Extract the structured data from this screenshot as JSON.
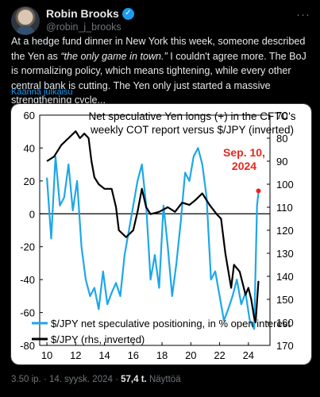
{
  "header": {
    "name": "Robin Brooks",
    "handle": "@robin_j_brooks",
    "verified_icon": "check-badge-icon",
    "more_icon": "ellipsis-icon",
    "verified_color": "#1d9bf0"
  },
  "tweet": {
    "text_before": "At a hedge fund dinner in New York this week, someone described the Yen as ",
    "quote": "“the only game in town.”",
    "text_after": " I couldn't agree more. The BoJ is normalizing policy, which means tightening, while every other central bank is cutting. The Yen only just started a massive strengthening cycle...",
    "translate": "Käännä julkaisu"
  },
  "footer": {
    "time": "3.50 ip.",
    "dot": "·",
    "date": "14. syysk. 2024",
    "views_count": "57,4 t.",
    "views_label": "Näyttöä"
  },
  "chart_data": {
    "type": "line",
    "title_lines": [
      "Net speculative Yen longs (+) in the CFTC's",
      "weekly COT report versus $/JPY (inverted)"
    ],
    "xlabel": "",
    "x_ticks": [
      "10",
      "12",
      "14",
      "16",
      "18",
      "20",
      "22",
      "24"
    ],
    "xlim": [
      2009.5,
      2025.5
    ],
    "left_axis": {
      "ticks": [
        "60",
        "40",
        "20",
        "0",
        "-20",
        "-40",
        "-60",
        "-80"
      ],
      "ylim": [
        -80,
        60
      ]
    },
    "right_axis": {
      "ticks": [
        "70",
        "80",
        "90",
        "100",
        "110",
        "120",
        "130",
        "140",
        "150",
        "160",
        "170"
      ],
      "ylim": [
        70,
        170
      ],
      "inverted": true
    },
    "zero_line": true,
    "annotation": {
      "text_lines": [
        "Sep. 10,",
        "2024"
      ],
      "x": 2024.7,
      "y": 13,
      "color": "#e8261e"
    },
    "legend_placement": "bottom-left",
    "series": [
      {
        "name": "$/JPY net speculative positioning, in % open interest",
        "axis": "left",
        "color": "#1ea7e8",
        "x": [
          2010.0,
          2010.3,
          2010.6,
          2010.9,
          2011.2,
          2011.5,
          2011.8,
          2012.1,
          2012.4,
          2012.7,
          2013.0,
          2013.3,
          2013.6,
          2013.9,
          2014.2,
          2014.5,
          2014.8,
          2015.1,
          2015.4,
          2015.7,
          2016.0,
          2016.3,
          2016.6,
          2016.9,
          2017.2,
          2017.5,
          2017.8,
          2018.1,
          2018.4,
          2018.7,
          2019.0,
          2019.3,
          2019.6,
          2019.9,
          2020.2,
          2020.5,
          2020.8,
          2021.1,
          2021.4,
          2021.7,
          2022.0,
          2022.3,
          2022.6,
          2022.9,
          2023.2,
          2023.5,
          2023.8,
          2024.1,
          2024.4,
          2024.6,
          2024.7
        ],
        "y": [
          22,
          -15,
          35,
          5,
          10,
          30,
          2,
          20,
          -20,
          -40,
          -50,
          -45,
          -58,
          -35,
          -55,
          -48,
          -42,
          -50,
          -25,
          -10,
          5,
          20,
          30,
          5,
          -40,
          -25,
          -45,
          5,
          -20,
          -50,
          -30,
          -5,
          25,
          20,
          35,
          40,
          30,
          10,
          -40,
          -35,
          -50,
          -65,
          -58,
          -50,
          -40,
          -55,
          -48,
          -65,
          -70,
          5,
          13
        ]
      },
      {
        "name": "$/JPY (rhs, inverted)",
        "axis": "right",
        "color": "#000000",
        "x": [
          2010.0,
          2010.5,
          2011.0,
          2011.5,
          2012.0,
          2012.3,
          2012.6,
          2012.9,
          2013.1,
          2013.3,
          2013.6,
          2014.0,
          2014.5,
          2014.8,
          2015.0,
          2015.5,
          2016.0,
          2016.3,
          2016.6,
          2016.9,
          2017.2,
          2017.8,
          2018.4,
          2018.9,
          2019.4,
          2019.9,
          2020.3,
          2020.8,
          2021.3,
          2021.8,
          2022.1,
          2022.4,
          2022.8,
          2023.0,
          2023.4,
          2023.8,
          2024.0,
          2024.2,
          2024.4,
          2024.5,
          2024.7
        ],
        "y": [
          90,
          88,
          83,
          80,
          77,
          80,
          78,
          80,
          90,
          97,
          100,
          102,
          102,
          110,
          120,
          123,
          120,
          112,
          102,
          110,
          113,
          112,
          110,
          112,
          108,
          109,
          107,
          104,
          109,
          113,
          115,
          130,
          145,
          135,
          138,
          148,
          145,
          150,
          158,
          160,
          142
        ]
      }
    ]
  }
}
